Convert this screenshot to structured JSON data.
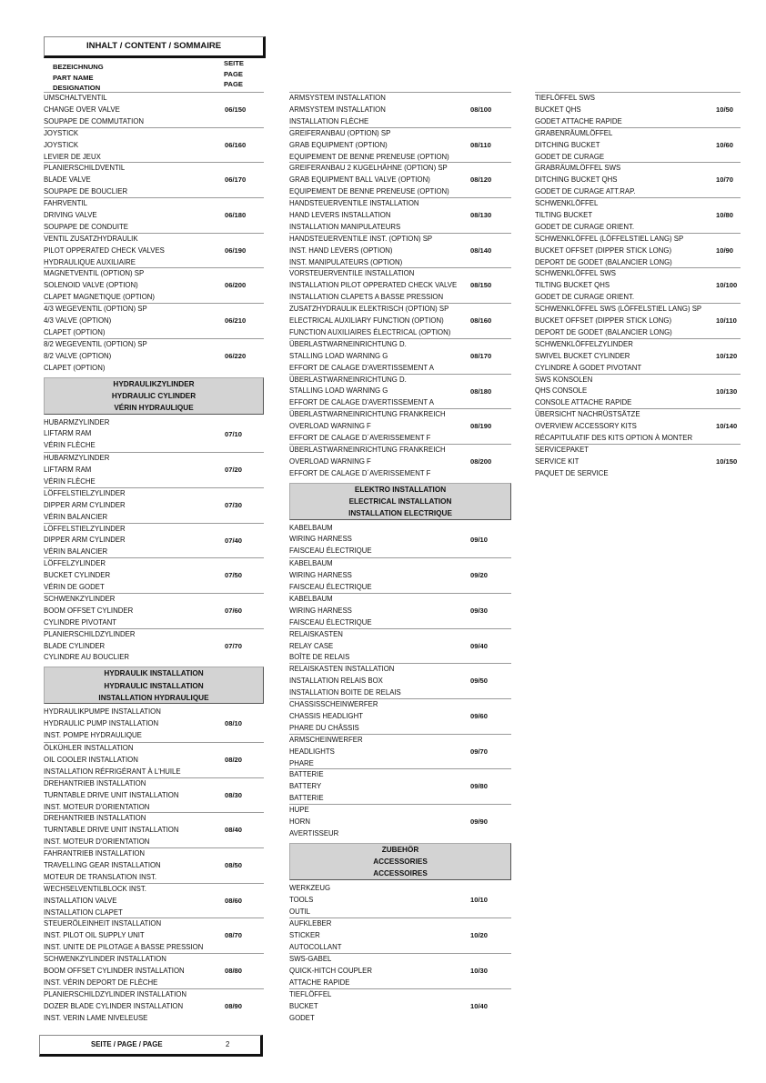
{
  "header": {
    "title": "INHALT / CONTENT / SOMMAIRE"
  },
  "column_header": {
    "names": [
      "BEZEICHNUNG",
      "PART NAME",
      "DESIGNATION"
    ],
    "pages": [
      "SEITE",
      "PAGE",
      "PAGE"
    ]
  },
  "columns": [
    [
      {
        "lines": [
          "UMSCHALTVENTIL",
          "CHANGE OVER VALVE",
          "SOUPAPE DE COMMUTATION"
        ],
        "page": "06/150"
      },
      {
        "lines": [
          "JOYSTICK",
          "JOYSTICK",
          "LEVIER DE JEUX"
        ],
        "page": "06/160"
      },
      {
        "lines": [
          "PLANIERSCHILDVENTIL",
          "BLADE VALVE",
          "SOUPAPE DE BOUCLIER"
        ],
        "page": "06/170"
      },
      {
        "lines": [
          "FAHRVENTIL",
          "DRIVING VALVE",
          "SOUPAPE DE CONDUITE"
        ],
        "page": "06/180"
      },
      {
        "lines": [
          "VENTIL ZUSATZHYDRAULIK",
          "PILOT OPPERATED CHECK VALVES",
          "HYDRAULIQUE AUXILIAIRE"
        ],
        "page": "06/190"
      },
      {
        "lines": [
          "MAGNETVENTIL (OPTION) SP",
          "SOLENOID VALVE (OPTION)",
          "CLAPET MAGNETIQUE (OPTION)"
        ],
        "page": "06/200"
      },
      {
        "lines": [
          "4/3 WEGEVENTIL (OPTION) SP",
          "4/3 VALVE (OPTION)",
          "CLAPET (OPTION)"
        ],
        "page": "06/210"
      },
      {
        "lines": [
          "8/2 WEGEVENTIL (OPTION) SP",
          "8/2 VALVE (OPTION)",
          "CLAPET (OPTION)"
        ],
        "page": "06/220"
      },
      {
        "section": [
          "HYDRAULIKZYLINDER",
          "HYDRAULIC CYLINDER",
          "VÉRIN HYDRAULIQUE"
        ]
      },
      {
        "lines": [
          "HUBARMZYLINDER",
          "LIFTARM RAM",
          "VÉRIN FLÈCHE"
        ],
        "page": "07/10"
      },
      {
        "lines": [
          "HUBARMZYLINDER",
          "LIFTARM RAM",
          "VÉRIN FLÈCHE"
        ],
        "page": "07/20"
      },
      {
        "lines": [
          "LÖFFELSTIELZYLINDER",
          "DIPPER ARM CYLINDER",
          "VÉRIN BALANCIER"
        ],
        "page": "07/30"
      },
      {
        "lines": [
          "LÖFFELSTIELZYLINDER",
          "DIPPER ARM CYLINDER",
          "VÉRIN BALANCIER"
        ],
        "page": "07/40"
      },
      {
        "lines": [
          "LÖFFELZYLINDER",
          "BUCKET CYLINDER",
          "VÉRIN DE GODET"
        ],
        "page": "07/50"
      },
      {
        "lines": [
          "SCHWENKZYLINDER",
          "BOOM OFFSET CYLINDER",
          "CYLINDRE PIVOTANT"
        ],
        "page": "07/60"
      },
      {
        "lines": [
          "PLANIERSCHILDZYLINDER",
          "BLADE CYLINDER",
          "CYLINDRE AU BOUCLIER"
        ],
        "page": "07/70"
      },
      {
        "section": [
          "HYDRAULIK INSTALLATION",
          "HYDRAULIC INSTALLATION",
          "INSTALLATION HYDRAULIQUE"
        ]
      },
      {
        "lines": [
          "HYDRAULIKPUMPE INSTALLATION",
          "HYDRAULIC PUMP INSTALLATION",
          "INST. POMPE HYDRAULIQUE"
        ],
        "page": "08/10"
      },
      {
        "lines": [
          "ÖLKÜHLER INSTALLATION",
          "OIL COOLER INSTALLATION",
          "INSTALLATION RÉFRIGÉRANT À L'HUILE"
        ],
        "page": "08/20"
      },
      {
        "lines": [
          "DREHANTRIEB INSTALLATION",
          "TURNTABLE DRIVE UNIT INSTALLATION",
          "INST. MOTEUR D'ORIENTATION"
        ],
        "page": "08/30"
      },
      {
        "lines": [
          "DREHANTRIEB INSTALLATION",
          "TURNTABLE DRIVE UNIT INSTALLATION",
          "INST. MOTEUR D'ORIENTATION"
        ],
        "page": "08/40"
      },
      {
        "lines": [
          "FAHRANTRIEB INSTALLATION",
          "TRAVELLING GEAR INSTALLATION",
          "MOTEUR DE TRANSLATION INST."
        ],
        "page": "08/50"
      },
      {
        "lines": [
          "WECHSELVENTILBLOCK INST.",
          "INSTALLATION VALVE",
          "INSTALLATION CLAPET"
        ],
        "page": "08/60"
      },
      {
        "lines": [
          "STEUERÖLEINHEIT INSTALLATION",
          "INST. PILOT OIL SUPPLY UNIT",
          "INST. UNITE DE PILOTAGE A BASSE PRESSION"
        ],
        "page": "08/70"
      },
      {
        "lines": [
          "SCHWENKZYLINDER INSTALLATION",
          "BOOM OFFSET CYLINDER INSTALLATION",
          "INST. VÉRIN DEPORT DE FLÈCHE"
        ],
        "page": "08/80"
      },
      {
        "lines": [
          "PLANIERSCHILDZYLINDER INSTALLATION",
          "DOZER BLADE CYLINDER INSTALLATION",
          "INST. VERIN LAME NIVELEUSE"
        ],
        "page": "08/90"
      }
    ],
    [
      {
        "lines": [
          "ARMSYSTEM INSTALLATION",
          "ARMSYSTEM INSTALLATION",
          "INSTALLATION FLÈCHE"
        ],
        "page": "08/100"
      },
      {
        "lines": [
          "GREIFERANBAU (OPTION) SP",
          "GRAB EQUIPMENT (OPTION)",
          "EQUIPEMENT DE BENNE PRENEUSE (OPTION)"
        ],
        "page": "08/110"
      },
      {
        "lines": [
          "GREIFERANBAU 2 KUGELHÄHNE (OPTION) SP",
          "GRAB EQUIPMENT BALL VALVE (OPTION)",
          "EQUIPEMENT DE BENNE PRENEUSE (OPTION)"
        ],
        "page": "08/120"
      },
      {
        "lines": [
          "HANDSTEUERVENTILE INSTALLATION",
          "HAND LEVERS INSTALLATION",
          "INSTALLATION MANIPULATEURS"
        ],
        "page": "08/130"
      },
      {
        "lines": [
          "HANDSTEUERVENTILE INST. (OPTION) SP",
          "INST. HAND LEVERS (OPTION)",
          "INST. MANIPULATEURS (OPTION)"
        ],
        "page": "08/140"
      },
      {
        "lines": [
          "VORSTEUERVENTILE INSTALLATION",
          "INSTALLATION PILOT OPPERATED CHECK VALVE",
          "INSTALLATION CLAPETS A BASSE PRESSION"
        ],
        "page": "08/150"
      },
      {
        "lines": [
          "ZUSATZHYDRAULIK ELEKTRISCH (OPTION) SP",
          "ELECTRICAL AUXILIARY FUNCTION (OPTION)",
          "FUNCTION AUXILIAIRES ÉLECTRICAL (OPTION)"
        ],
        "page": "08/160"
      },
      {
        "lines": [
          "ÜBERLASTWARNEINRICHTUNG D.",
          "STALLING LOAD WARNING G",
          "EFFORT DE CALAGE D'AVERTISSEMENT A"
        ],
        "page": "08/170"
      },
      {
        "lines": [
          "ÜBERLASTWARNEINRICHTUNG D.",
          "STALLING LOAD WARNING G",
          "EFFORT DE CALAGE D'AVERTISSEMENT A"
        ],
        "page": "08/180"
      },
      {
        "lines": [
          "ÜBERLASTWARNEINRICHTUNG FRANKREICH",
          "OVERLOAD WARNING F",
          "EFFORT DE CALAGE D´AVERISSEMENT F"
        ],
        "page": "08/190"
      },
      {
        "lines": [
          "ÜBERLASTWARNEINRICHTUNG FRANKREICH",
          "OVERLOAD WARNING F",
          "EFFORT DE CALAGE D´AVERISSEMENT F"
        ],
        "page": "08/200"
      },
      {
        "section": [
          "ELEKTRO INSTALLATION",
          "ELECTRICAL INSTALLATION",
          "INSTALLATION ELECTRIQUE"
        ]
      },
      {
        "lines": [
          "KABELBAUM",
          "WIRING HARNESS",
          "FAISCEAU ÉLECTRIQUE"
        ],
        "page": "09/10"
      },
      {
        "lines": [
          "KABELBAUM",
          "WIRING HARNESS",
          "FAISCEAU ÉLECTRIQUE"
        ],
        "page": "09/20"
      },
      {
        "lines": [
          "KABELBAUM",
          "WIRING HARNESS",
          "FAISCEAU ÉLECTRIQUE"
        ],
        "page": "09/30"
      },
      {
        "lines": [
          "RELAISKASTEN",
          "RELAY CASE",
          "BOÎTE DE RELAIS"
        ],
        "page": "09/40"
      },
      {
        "lines": [
          "RELAISKASTEN INSTALLATION",
          "INSTALLATION RELAIS BOX",
          "INSTALLATION BOITE DE RELAIS"
        ],
        "page": "09/50"
      },
      {
        "lines": [
          "CHASSISSCHEINWERFER",
          "CHASSIS HEADLIGHT",
          "PHARE DU CHÂSSIS"
        ],
        "page": "09/60"
      },
      {
        "lines": [
          "ARMSCHEINWERFER",
          "HEADLIGHTS",
          "PHARE"
        ],
        "page": "09/70"
      },
      {
        "lines": [
          "BATTERIE",
          "BATTERY",
          "BATTERIE"
        ],
        "page": "09/80"
      },
      {
        "lines": [
          "HUPE",
          "HORN",
          "AVERTISSEUR"
        ],
        "page": "09/90"
      },
      {
        "section": [
          "ZUBEHÖR",
          "ACCESSORIES",
          "ACCESSOIRES"
        ]
      },
      {
        "lines": [
          "WERKZEUG",
          "TOOLS",
          "OUTIL"
        ],
        "page": "10/10"
      },
      {
        "lines": [
          "AUFKLEBER",
          "STICKER",
          "AUTOCOLLANT"
        ],
        "page": "10/20"
      },
      {
        "lines": [
          "SWS-GABEL",
          "QUICK-HITCH COUPLER",
          "ATTACHE RAPIDE"
        ],
        "page": "10/30"
      },
      {
        "lines": [
          "TIEFLÖFFEL",
          "BUCKET",
          "GODET"
        ],
        "page": "10/40"
      }
    ],
    [
      {
        "lines": [
          "TIEFLÖFFEL SWS",
          "BUCKET QHS",
          "GODET ATTACHE RAPIDE"
        ],
        "page": "10/50"
      },
      {
        "lines": [
          "GRABENRÄUMLÖFFEL",
          "DITCHING BUCKET",
          "GODET DE CURAGE"
        ],
        "page": "10/60"
      },
      {
        "lines": [
          "GRABRÄUMLÖFFEL SWS",
          "DITCHING BUCKET QHS",
          "GODET DE CURAGE ATT.RAP."
        ],
        "page": "10/70"
      },
      {
        "lines": [
          "SCHWENKLÖFFEL",
          "TILTING BUCKET",
          "GODET DE CURAGE ORIENT."
        ],
        "page": "10/80"
      },
      {
        "lines": [
          "SCHWENKLÖFFEL (LÖFFELSTIEL LANG) SP",
          "BUCKET OFFSET (DIPPER STICK LONG)",
          "DEPORT DE GODET (BALANCIER LONG)"
        ],
        "page": "10/90"
      },
      {
        "lines": [
          "SCHWENKLÖFFEL SWS",
          "TILTING BUCKET QHS",
          "GODET DE CURAGE ORIENT."
        ],
        "page": "10/100"
      },
      {
        "lines": [
          "SCHWENKLÖFFEL SWS (LÖFFELSTIEL LANG) SP",
          "BUCKET OFFSET (DIPPER STICK LONG)",
          "DEPORT DE GODET (BALANCIER LONG)"
        ],
        "page": "10/110"
      },
      {
        "lines": [
          "SCHWENKLÖFFELZYLINDER",
          "SWIVEL BUCKET CYLINDER",
          "CYLINDRE À GODET PIVOTANT"
        ],
        "page": "10/120"
      },
      {
        "lines": [
          "SWS KONSOLEN",
          "QHS CONSOLE",
          "CONSOLE ATTACHE RAPIDE"
        ],
        "page": "10/130"
      },
      {
        "lines": [
          "ÜBERSICHT NACHRÜSTSÄTZE",
          "OVERVIEW ACCESSORY KITS",
          "RÉCAPITULATIF DES KITS OPTION À MONTER"
        ],
        "page": "10/140"
      },
      {
        "lines": [
          "SERVICEPAKET",
          "SERVICE KIT",
          "PAQUET DE SERVICE"
        ],
        "page": "10/150"
      }
    ]
  ],
  "footer": {
    "label": "SEITE / PAGE / PAGE",
    "page_number": "2"
  }
}
